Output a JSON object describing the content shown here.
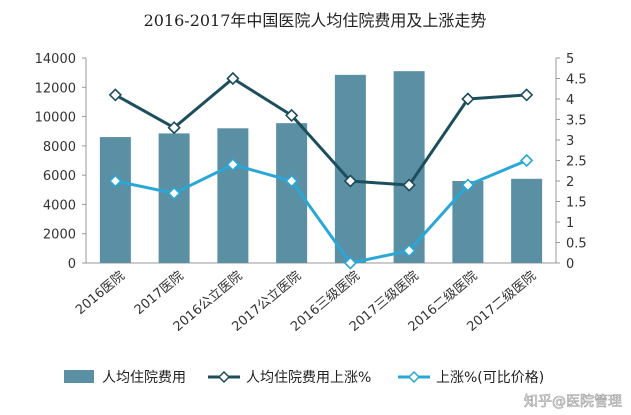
{
  "chart_data": {
    "type": "bar",
    "title": "2016-2017年中国医院人均住院费用及上涨走势",
    "categories": [
      "2016医院",
      "2017医院",
      "2016公立医院",
      "2017公立医院",
      "2016三级医院",
      "2017三级医院",
      "2016二级医院",
      "2017二级医院"
    ],
    "y_left": {
      "min": 0,
      "max": 14000,
      "ticks": [
        "0",
        "2000",
        "4000",
        "6000",
        "8000",
        "10000",
        "12000",
        "14000"
      ]
    },
    "y_right": {
      "min": 0,
      "max": 5,
      "ticks": [
        "0",
        "0.5",
        "1",
        "1.5",
        "2",
        "2.5",
        "3",
        "3.5",
        "4",
        "4.5",
        "5"
      ]
    },
    "series": [
      {
        "name": "人均住院费用",
        "kind": "bar",
        "axis": "left",
        "color": "#5b8fa3",
        "values": [
          8600,
          8850,
          9200,
          9550,
          12850,
          13100,
          5600,
          5750
        ]
      },
      {
        "name": "人均住院费用上涨%",
        "kind": "line",
        "axis": "right",
        "color": "#1d4e5e",
        "values": [
          4.1,
          3.3,
          4.5,
          3.6,
          2.0,
          1.9,
          4.0,
          4.1
        ]
      },
      {
        "name": "上涨%(可比价格)",
        "kind": "line",
        "axis": "right",
        "color": "#2aa7d6",
        "values": [
          2.0,
          1.7,
          2.4,
          2.0,
          0.0,
          0.3,
          1.9,
          2.5
        ]
      }
    ],
    "legend": "bottom",
    "grid": false
  },
  "watermark": "知乎@医院管理"
}
